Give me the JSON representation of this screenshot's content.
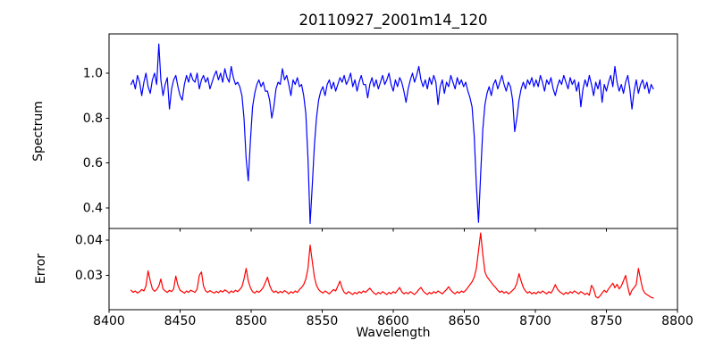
{
  "figure": {
    "background": "#ffffff",
    "frame_color": "#000000",
    "text_color": "#000000"
  },
  "chart_data": {
    "type": "line",
    "title": "20110927_2001m14_120",
    "xlabel": "Wavelength",
    "grid": false,
    "legend": null,
    "xlim": [
      8400,
      8800
    ],
    "xticks": [
      8400,
      8450,
      8500,
      8550,
      8600,
      8650,
      8700,
      8750,
      8800
    ],
    "xtick_labels": [
      "8400",
      "8450",
      "8500",
      "8550",
      "8600",
      "8650",
      "8700",
      "8750",
      "8800"
    ],
    "x_start": 8415.5,
    "x_step": 1.5,
    "panels": [
      {
        "name": "spectrum",
        "ylabel": "Spectrum",
        "ylim": [
          0.308,
          1.175
        ],
        "yticks": [
          0.4,
          0.6,
          0.8,
          1.0
        ],
        "ytick_labels": [
          "0.4",
          "0.6",
          "0.8",
          "1.0"
        ],
        "series": [
          {
            "name": "spectrum",
            "color": "#0000ff",
            "values": [
              0.95,
              0.97,
              0.93,
              0.99,
              0.96,
              0.9,
              0.96,
              1.0,
              0.94,
              0.91,
              0.97,
              1.0,
              0.95,
              1.13,
              0.97,
              0.9,
              0.95,
              0.98,
              0.84,
              0.93,
              0.97,
              0.99,
              0.94,
              0.9,
              0.88,
              0.95,
              0.99,
              0.96,
              1.0,
              0.97,
              0.96,
              1.0,
              0.93,
              0.97,
              0.99,
              0.96,
              0.98,
              0.93,
              0.96,
              0.99,
              1.01,
              0.97,
              1.0,
              0.96,
              1.02,
              0.98,
              0.96,
              1.03,
              0.98,
              0.95,
              0.96,
              0.94,
              0.9,
              0.8,
              0.62,
              0.52,
              0.7,
              0.85,
              0.91,
              0.95,
              0.97,
              0.94,
              0.96,
              0.92,
              0.92,
              0.88,
              0.8,
              0.85,
              0.93,
              0.96,
              0.95,
              1.02,
              0.97,
              0.99,
              0.95,
              0.9,
              0.97,
              0.95,
              0.98,
              0.94,
              0.95,
              0.9,
              0.82,
              0.62,
              0.33,
              0.5,
              0.68,
              0.8,
              0.88,
              0.92,
              0.94,
              0.9,
              0.95,
              0.97,
              0.93,
              0.96,
              0.92,
              0.95,
              0.98,
              0.96,
              0.99,
              0.95,
              0.97,
              1.0,
              0.94,
              0.97,
              0.92,
              0.96,
              0.99,
              0.95,
              0.95,
              0.89,
              0.95,
              0.98,
              0.94,
              0.97,
              0.93,
              0.96,
              0.99,
              0.95,
              0.97,
              1.0,
              0.95,
              0.92,
              0.97,
              0.94,
              0.98,
              0.96,
              0.92,
              0.87,
              0.93,
              0.97,
              1.0,
              0.96,
              0.99,
              1.03,
              0.97,
              0.94,
              0.97,
              0.93,
              0.98,
              0.95,
              0.99,
              0.96,
              0.86,
              0.94,
              0.97,
              0.91,
              0.96,
              0.94,
              0.99,
              0.96,
              0.93,
              0.98,
              0.95,
              0.97,
              0.94,
              0.96,
              0.92,
              0.89,
              0.85,
              0.72,
              0.5,
              0.335,
              0.55,
              0.75,
              0.86,
              0.91,
              0.94,
              0.9,
              0.95,
              0.97,
              0.93,
              0.96,
              0.99,
              0.95,
              0.92,
              0.96,
              0.94,
              0.88,
              0.74,
              0.8,
              0.88,
              0.93,
              0.96,
              0.93,
              0.97,
              0.95,
              0.98,
              0.94,
              0.97,
              0.94,
              0.99,
              0.96,
              0.92,
              0.97,
              0.95,
              0.98,
              0.93,
              0.9,
              0.94,
              0.97,
              0.95,
              0.99,
              0.96,
              0.93,
              0.98,
              0.95,
              0.97,
              0.92,
              0.96,
              0.85,
              0.93,
              0.97,
              0.94,
              0.99,
              0.95,
              0.9,
              0.96,
              0.93,
              0.97,
              0.87,
              0.95,
              0.92,
              0.96,
              0.99,
              0.94,
              1.03,
              0.96,
              0.92,
              0.95,
              0.91,
              0.96,
              0.99,
              0.93,
              0.84,
              0.92,
              0.97,
              0.91,
              0.95,
              0.97,
              0.93,
              0.96,
              0.91,
              0.95,
              0.93
            ]
          }
        ]
      },
      {
        "name": "error",
        "ylabel": "Error",
        "ylim": [
          0.0203,
          0.0433
        ],
        "yticks": [
          0.03,
          0.04
        ],
        "ytick_labels": [
          "0.03",
          "0.04"
        ],
        "series": [
          {
            "name": "error",
            "color": "#ff0000",
            "values": [
              0.0258,
              0.0252,
              0.0256,
              0.025,
              0.0254,
              0.026,
              0.0256,
              0.027,
              0.0313,
              0.0285,
              0.0262,
              0.0255,
              0.026,
              0.027,
              0.029,
              0.0262,
              0.0256,
              0.0252,
              0.0258,
              0.0254,
              0.0262,
              0.0298,
              0.0272,
              0.0258,
              0.0254,
              0.025,
              0.0256,
              0.0252,
              0.0258,
              0.0255,
              0.0252,
              0.0262,
              0.03,
              0.031,
              0.027,
              0.0256,
              0.0252,
              0.0257,
              0.0253,
              0.025,
              0.0255,
              0.0251,
              0.0257,
              0.0253,
              0.0259,
              0.0255,
              0.025,
              0.0256,
              0.0252,
              0.0258,
              0.0254,
              0.026,
              0.0268,
              0.029,
              0.032,
              0.0285,
              0.0265,
              0.0254,
              0.025,
              0.0256,
              0.0252,
              0.0258,
              0.0266,
              0.028,
              0.0295,
              0.0272,
              0.0258,
              0.0252,
              0.0256,
              0.025,
              0.0255,
              0.0251,
              0.0257,
              0.0253,
              0.0248,
              0.0254,
              0.025,
              0.0256,
              0.0252,
              0.026,
              0.0266,
              0.0274,
              0.029,
              0.032,
              0.0386,
              0.034,
              0.0295,
              0.0272,
              0.026,
              0.0254,
              0.025,
              0.0256,
              0.0252,
              0.0248,
              0.0254,
              0.026,
              0.0256,
              0.027,
              0.0284,
              0.0264,
              0.0252,
              0.0248,
              0.0254,
              0.025,
              0.0246,
              0.0252,
              0.0248,
              0.0254,
              0.025,
              0.0256,
              0.0252,
              0.0258,
              0.0264,
              0.0256,
              0.025,
              0.0246,
              0.0252,
              0.0248,
              0.0254,
              0.025,
              0.0246,
              0.0252,
              0.0248,
              0.0254,
              0.025,
              0.0258,
              0.0266,
              0.0254,
              0.0248,
              0.0252,
              0.0248,
              0.0254,
              0.025,
              0.0246,
              0.0252,
              0.026,
              0.0266,
              0.0256,
              0.025,
              0.0246,
              0.0252,
              0.0248,
              0.0254,
              0.025,
              0.0256,
              0.0252,
              0.0248,
              0.0254,
              0.026,
              0.0268,
              0.0258,
              0.0252,
              0.0248,
              0.0254,
              0.025,
              0.0256,
              0.0252,
              0.0258,
              0.0266,
              0.0274,
              0.0282,
              0.0295,
              0.032,
              0.037,
              0.042,
              0.036,
              0.031,
              0.0296,
              0.0288,
              0.028,
              0.0272,
              0.0266,
              0.0258,
              0.0252,
              0.0256,
              0.025,
              0.0254,
              0.0248,
              0.0252,
              0.0258,
              0.0264,
              0.0278,
              0.0305,
              0.0284,
              0.0266,
              0.0256,
              0.025,
              0.0254,
              0.0248,
              0.0252,
              0.0248,
              0.0254,
              0.025,
              0.0256,
              0.0252,
              0.0248,
              0.0254,
              0.025,
              0.026,
              0.0274,
              0.0262,
              0.0254,
              0.025,
              0.0246,
              0.0252,
              0.0248,
              0.0254,
              0.025,
              0.0256,
              0.0252,
              0.0248,
              0.0254,
              0.025,
              0.0246,
              0.025,
              0.0244,
              0.0272,
              0.0262,
              0.024,
              0.0236,
              0.0242,
              0.025,
              0.0258,
              0.0252,
              0.0262,
              0.027,
              0.0278,
              0.0265,
              0.0275,
              0.0262,
              0.027,
              0.0285,
              0.03,
              0.0268,
              0.0244,
              0.0258,
              0.0266,
              0.0274,
              0.032,
              0.029,
              0.0262,
              0.025,
              0.0246,
              0.0242,
              0.0238,
              0.0236
            ]
          }
        ]
      }
    ]
  }
}
